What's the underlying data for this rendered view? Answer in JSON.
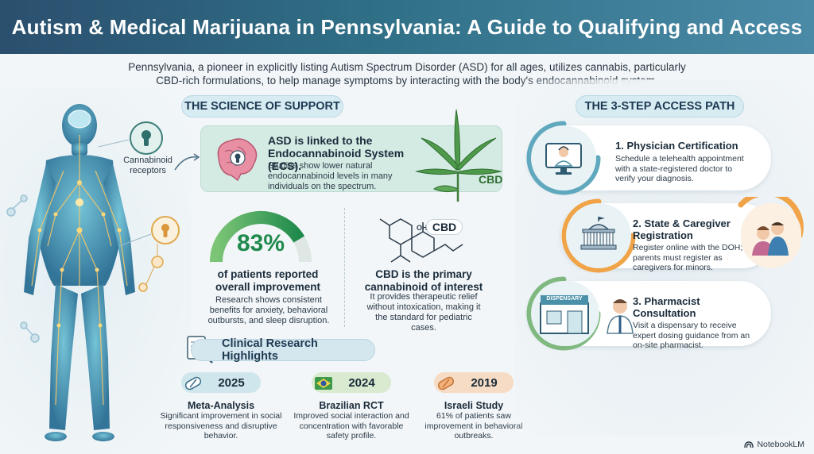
{
  "title": "Autism & Medical Marijuana in Pennsylvania: A Guide to Qualifying and Access",
  "intro": "Pennsylvania, a pioneer in explicitly listing Autism Spectrum Disorder (ASD) for all ages, utilizes cannabis, particularly CBD-rich formulations, to help manage symptoms by interacting with the body's endocannabinoid system.",
  "body_figure": {
    "label": "Cannabinoid receptors"
  },
  "science": {
    "heading": "THE SCIENCE OF SUPPORT",
    "ecs_card": {
      "title": "ASD is linked to the Endocannabinoid System (ECS).",
      "text": "Studies show lower natural endocannabinoid levels in many individuals on the spectrum.",
      "leaf_badge": "CBD"
    },
    "stat": {
      "value_text": "83%",
      "value": 83,
      "headline": "of patients reported overall improvement",
      "text": "Research shows consistent benefits for anxiety, behavioral outbursts, and sleep disruption."
    },
    "cbd": {
      "molecule_label": "CBD",
      "oh_label": "OH",
      "headline": "CBD is the primary cannabinoid of interest",
      "text": "It provides therapeutic relief without intoxication, making it the standard for pediatric cases."
    }
  },
  "research": {
    "heading": "Clinical Research Highlights",
    "items": [
      {
        "year": "2025",
        "title": "Meta-Analysis",
        "text": "Significant improvement in social responsiveness and disruptive behavior.",
        "color": "#cfe6ec",
        "icon": "pill-icon"
      },
      {
        "year": "2024",
        "title": "Brazilian RCT",
        "text": "Improved social interaction and concentration with favorable safety profile.",
        "color": "#d9ead0",
        "icon": "brazil-flag-icon"
      },
      {
        "year": "2019",
        "title": "Israeli Study",
        "text": "61% of patients saw improvement in behavioral outbreaks.",
        "color": "#f6dcc4",
        "icon": "capsule-icon"
      }
    ]
  },
  "access": {
    "heading": "THE 3-STEP ACCESS PATH",
    "steps": [
      {
        "title": "1. Physician Certification",
        "text": "Schedule a telehealth appointment with a state-registered doctor to verify your diagnosis.",
        "accent": "#5fa8bd",
        "icon": "telehealth-doctor-icon"
      },
      {
        "title": "2. State & Caregiver Registration",
        "text": "Register online with the DOH; parents must register as caregivers for minors.",
        "accent": "#f0a347",
        "icon": "capitol-building-icon"
      },
      {
        "title": "3. Pharmacist Consultation",
        "text": "Visit a dispensary to receive expert dosing guidance from an on-site pharmacist.",
        "accent": "#7fb980",
        "icon": "pharmacist-icon"
      }
    ],
    "dispensary_sign": "DISPENSARY"
  },
  "footer": {
    "brand": "NotebookLM"
  }
}
